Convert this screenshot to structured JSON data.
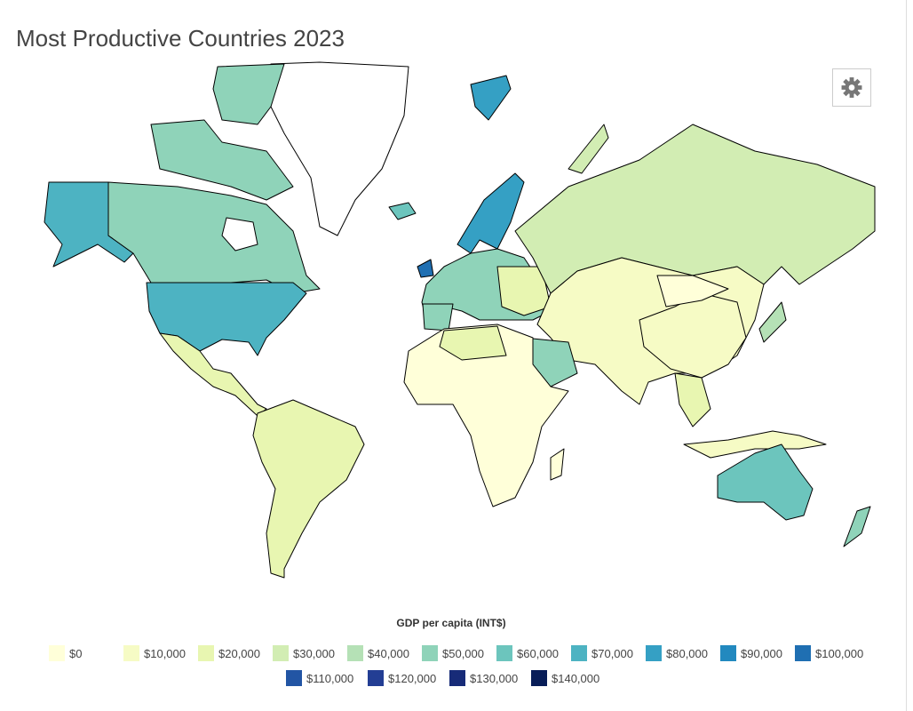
{
  "title": "Most Productive Countries 2023",
  "legend": {
    "title": "GDP per capita (INT$)",
    "items": [
      {
        "label": "$0",
        "color": "#ffffd9"
      },
      {
        "label": "$10,000",
        "color": "#f6fbc5"
      },
      {
        "label": "$20,000",
        "color": "#e8f6b1"
      },
      {
        "label": "$30,000",
        "color": "#d2edb3"
      },
      {
        "label": "$40,000",
        "color": "#b5e1b6"
      },
      {
        "label": "$50,000",
        "color": "#8fd3b9"
      },
      {
        "label": "$60,000",
        "color": "#6cc5bd"
      },
      {
        "label": "$70,000",
        "color": "#4db3c2"
      },
      {
        "label": "$80,000",
        "color": "#35a0c4"
      },
      {
        "label": "$90,000",
        "color": "#2289bf"
      },
      {
        "label": "$100,000",
        "color": "#1f6fb2"
      },
      {
        "label": "$110,000",
        "color": "#2255a4"
      },
      {
        "label": "$120,000",
        "color": "#233e94"
      },
      {
        "label": "$130,000",
        "color": "#172b78"
      },
      {
        "label": "$140,000",
        "color": "#081d58"
      }
    ]
  }
}
